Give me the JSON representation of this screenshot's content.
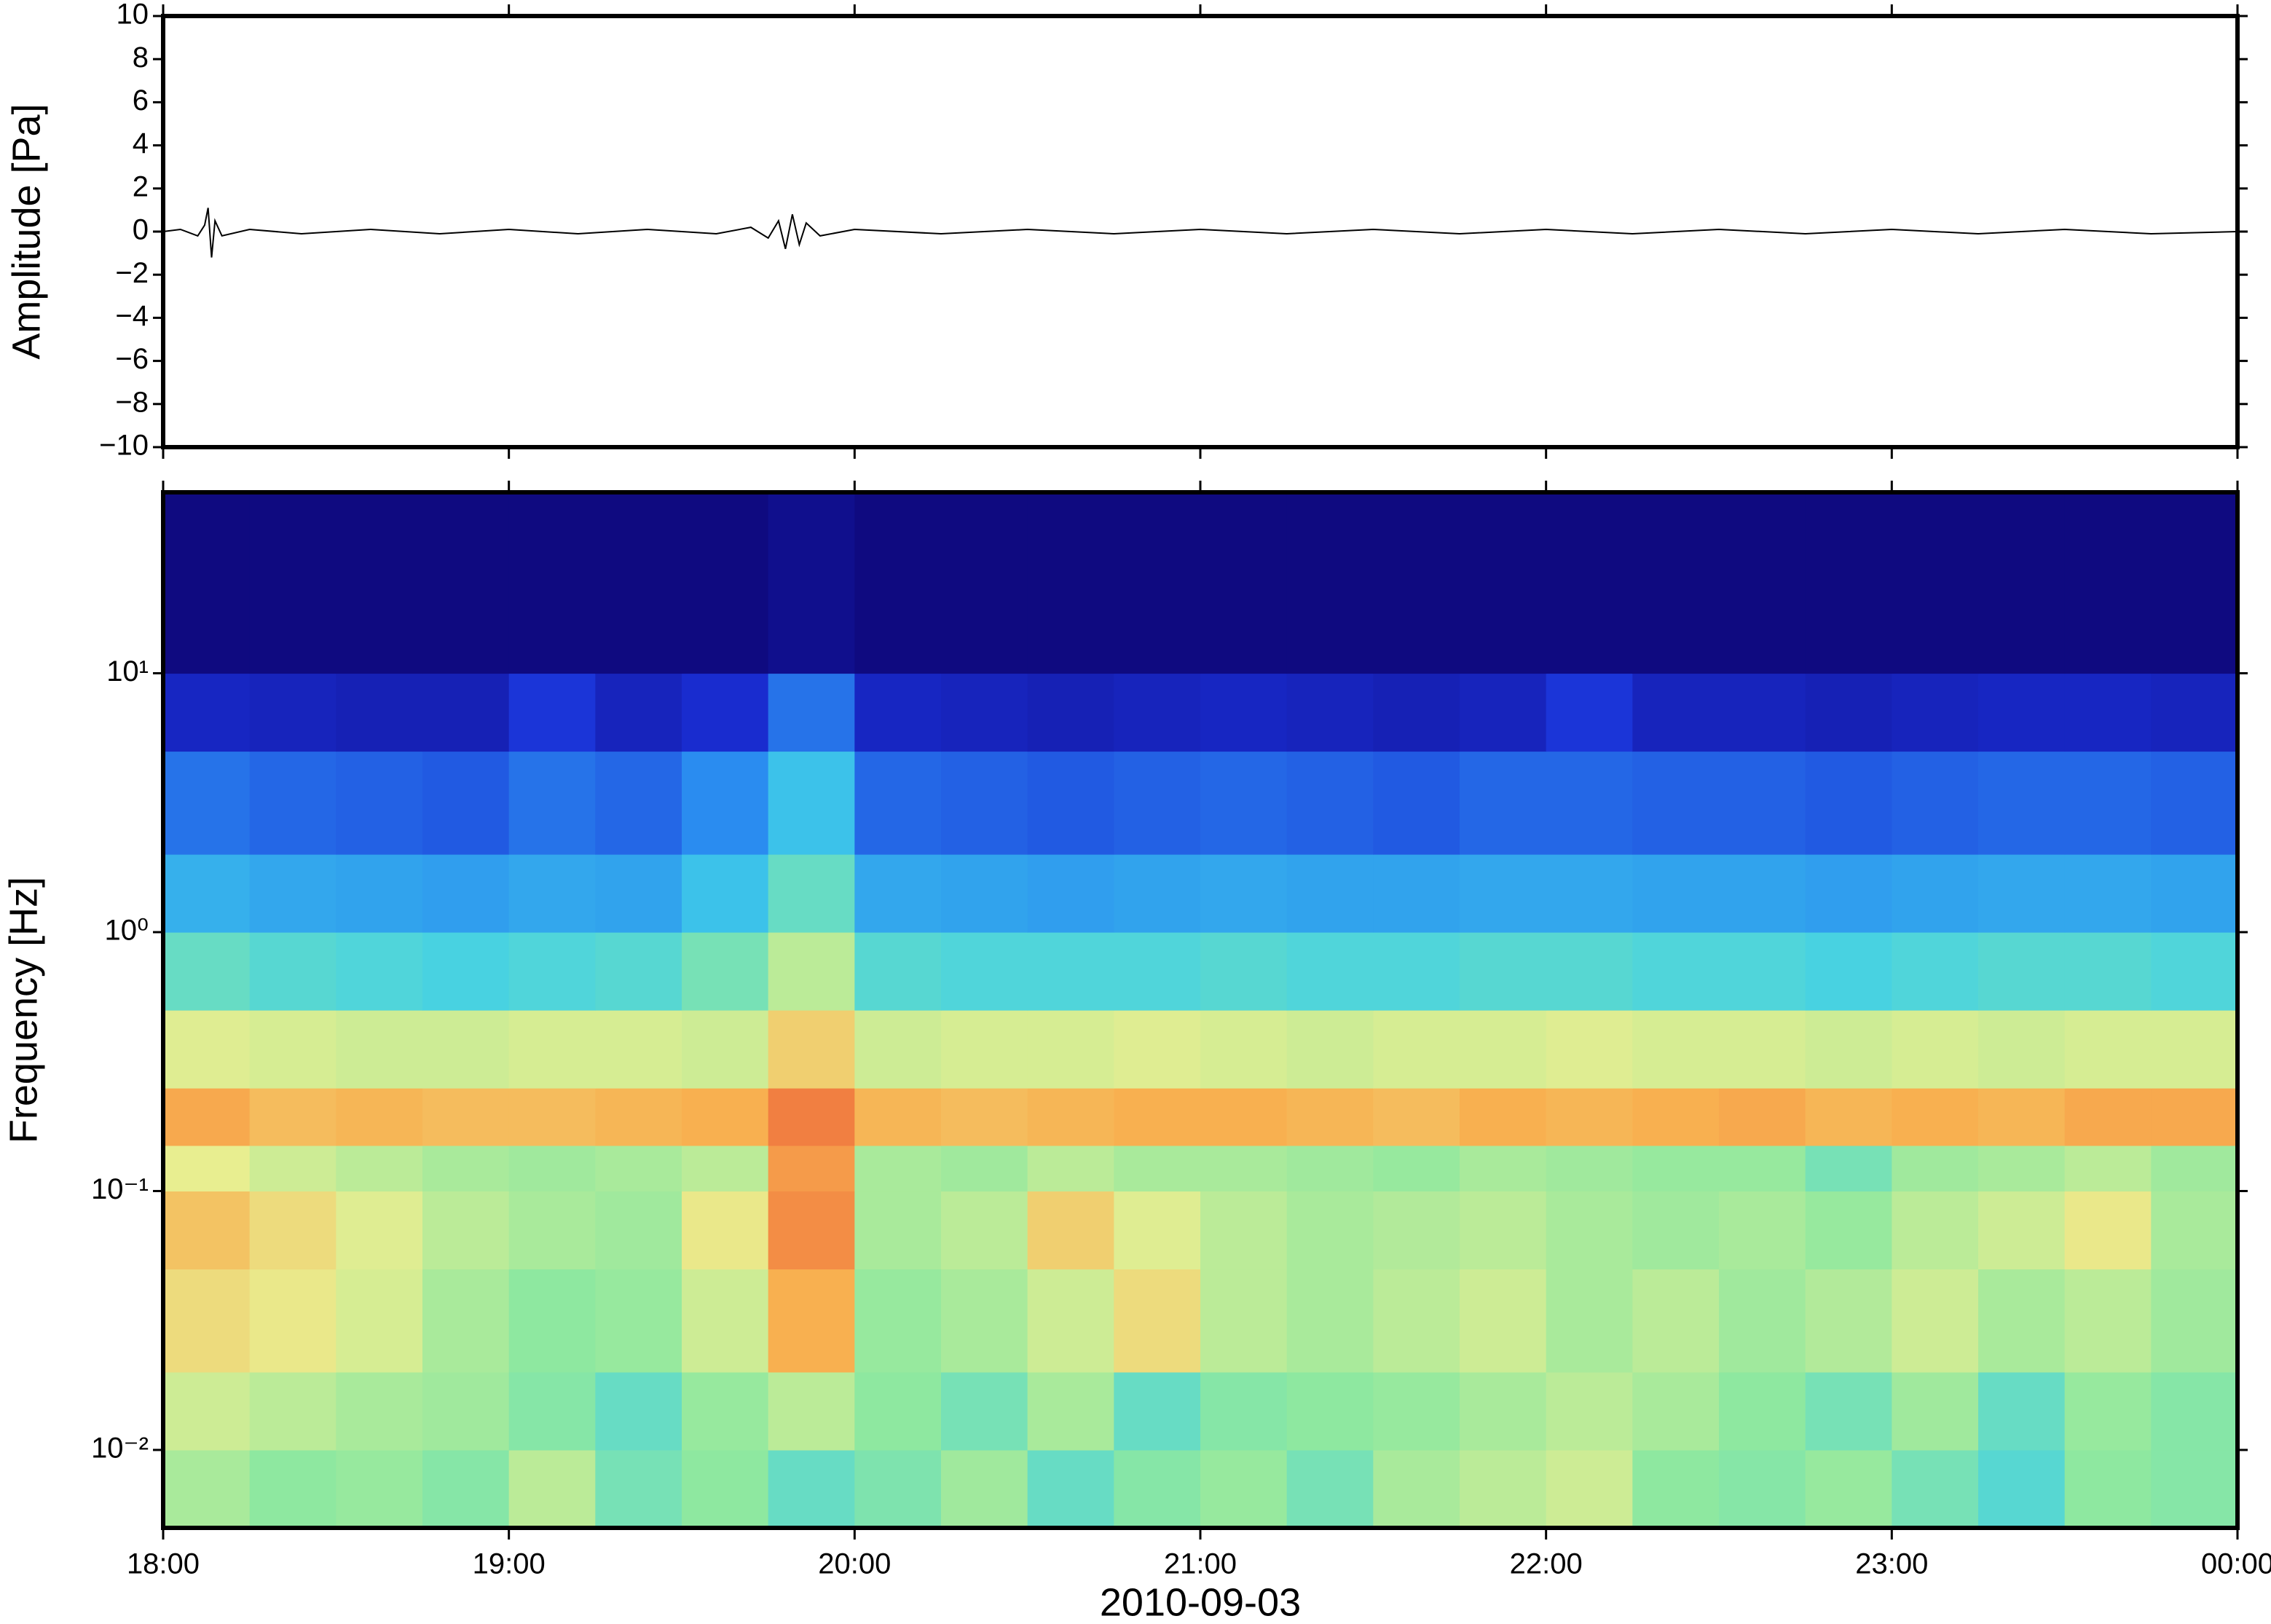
{
  "chart_data": [
    {
      "type": "line",
      "ylabel": "Amplitude [Pa]",
      "color": "#000000",
      "x": [
        18,
        18.05,
        18.1,
        18.12,
        18.13,
        18.14,
        18.15,
        18.17,
        18.25,
        18.4,
        18.6,
        18.8,
        19.0,
        19.2,
        19.4,
        19.6,
        19.7,
        19.75,
        19.78,
        19.8,
        19.82,
        19.84,
        19.86,
        19.9,
        20,
        20.25,
        20.5,
        20.75,
        21,
        21.25,
        21.5,
        21.75,
        22,
        22.25,
        22.5,
        22.75,
        23,
        23.25,
        23.5,
        23.75,
        24
      ],
      "values": [
        0,
        0.1,
        -0.2,
        0.3,
        1.1,
        -1.2,
        0.5,
        -0.2,
        0.1,
        -0.1,
        0.1,
        -0.1,
        0.1,
        -0.1,
        0.1,
        -0.1,
        0.2,
        -0.3,
        0.5,
        -0.8,
        0.8,
        -0.6,
        0.4,
        -0.2,
        0.1,
        -0.1,
        0.1,
        -0.1,
        0.1,
        -0.1,
        0.1,
        -0.1,
        0.1,
        -0.1,
        0.1,
        -0.1,
        0.1,
        -0.1,
        0.1,
        -0.1,
        0
      ],
      "ylim": [
        -10,
        10
      ],
      "yticks": [
        {
          "value": -10,
          "label": "−10"
        },
        {
          "value": -8,
          "label": "−8"
        },
        {
          "value": -6,
          "label": "−6"
        },
        {
          "value": -4,
          "label": "−4"
        },
        {
          "value": -2,
          "label": "−2"
        },
        0,
        2,
        4,
        6,
        8,
        10
      ]
    },
    {
      "type": "heatmap",
      "xlabel": "2010-09-03",
      "ylabel": "Frequency [Hz]",
      "yscale": "log",
      "xlim": [
        18,
        24
      ],
      "xticks": [
        {
          "value": 18,
          "label": "18:00"
        },
        {
          "value": 19,
          "label": "19:00"
        },
        {
          "value": 20,
          "label": "20:00"
        },
        {
          "value": 21,
          "label": "21:00"
        },
        {
          "value": 22,
          "label": "22:00"
        },
        {
          "value": 23,
          "label": "23:00"
        },
        {
          "value": 24,
          "label": "00:00"
        }
      ],
      "ylim": [
        0.005,
        50
      ],
      "yticks": [
        {
          "value": 0.01,
          "label": "10⁻²"
        },
        {
          "value": 0.1,
          "label": "10⁻¹"
        },
        {
          "value": 1,
          "label": "10⁰"
        },
        {
          "value": 10,
          "label": "10¹"
        }
      ],
      "time_bins": [
        18,
        18.25,
        18.5,
        18.75,
        19,
        19.25,
        19.5,
        19.75,
        20,
        20.25,
        20.5,
        20.75,
        21,
        21.25,
        21.5,
        21.75,
        22,
        22.25,
        22.5,
        22.75,
        23,
        23.25,
        23.5,
        23.75,
        24
      ],
      "freq_bins": [
        0.005,
        0.01,
        0.02,
        0.05,
        0.1,
        0.15,
        0.25,
        0.5,
        1,
        2,
        5,
        10,
        50
      ],
      "colorscale": [
        [
          0,
          "#0d0473"
        ],
        [
          15,
          "#1a2fd6"
        ],
        [
          30,
          "#2a8cf0"
        ],
        [
          45,
          "#40d0e8"
        ],
        [
          55,
          "#8ee8a0"
        ],
        [
          65,
          "#e8ee90"
        ],
        [
          75,
          "#f8b050"
        ],
        [
          90,
          "#e84830"
        ]
      ],
      "z": [
        [
          58,
          55,
          56,
          54,
          60,
          52,
          55,
          50,
          53,
          57,
          50,
          54,
          56,
          52,
          58,
          60,
          62,
          55,
          54,
          56,
          52,
          48,
          55,
          54
        ],
        [
          62,
          60,
          58,
          57,
          54,
          50,
          56,
          60,
          55,
          52,
          58,
          50,
          54,
          55,
          56,
          58,
          60,
          58,
          55,
          52,
          57,
          50,
          56,
          54
        ],
        [
          68,
          66,
          63,
          58,
          55,
          56,
          62,
          75,
          56,
          58,
          62,
          68,
          60,
          58,
          60,
          62,
          58,
          60,
          57,
          59,
          62,
          58,
          60,
          57
        ],
        [
          72,
          68,
          64,
          60,
          58,
          57,
          66,
          80,
          58,
          60,
          70,
          64,
          60,
          58,
          59,
          60,
          58,
          57,
          58,
          56,
          60,
          62,
          66,
          58
        ],
        [
          65,
          62,
          60,
          58,
          57,
          58,
          60,
          78,
          58,
          57,
          60,
          58,
          58,
          57,
          56,
          58,
          57,
          56,
          56,
          52,
          57,
          58,
          60,
          57
        ],
        [
          76,
          73,
          74,
          73,
          73,
          74,
          75,
          82,
          74,
          73,
          74,
          75,
          75,
          74,
          73,
          75,
          74,
          75,
          76,
          74,
          75,
          74,
          76,
          76
        ],
        [
          64,
          63,
          62,
          62,
          63,
          63,
          62,
          70,
          62,
          63,
          63,
          64,
          63,
          62,
          63,
          63,
          64,
          63,
          63,
          62,
          63,
          62,
          63,
          63
        ],
        [
          50,
          48,
          47,
          46,
          47,
          48,
          52,
          60,
          48,
          47,
          47,
          47,
          48,
          47,
          47,
          48,
          48,
          47,
          47,
          46,
          47,
          48,
          48,
          47
        ],
        [
          38,
          36,
          35,
          34,
          36,
          35,
          42,
          50,
          36,
          35,
          34,
          35,
          36,
          35,
          35,
          36,
          36,
          35,
          35,
          34,
          35,
          36,
          36,
          35
        ],
        [
          26,
          24,
          23,
          22,
          26,
          24,
          30,
          42,
          24,
          23,
          22,
          23,
          24,
          23,
          22,
          24,
          24,
          23,
          23,
          22,
          23,
          24,
          24,
          23
        ],
        [
          12,
          11,
          10,
          10,
          16,
          11,
          14,
          26,
          12,
          11,
          10,
          11,
          12,
          11,
          10,
          11,
          16,
          11,
          11,
          10,
          11,
          12,
          12,
          11
        ],
        [
          2,
          2,
          2,
          2,
          2,
          2,
          2,
          4,
          2,
          2,
          2,
          2,
          2,
          2,
          2,
          2,
          2,
          2,
          2,
          2,
          2,
          2,
          2,
          2
        ]
      ]
    }
  ]
}
